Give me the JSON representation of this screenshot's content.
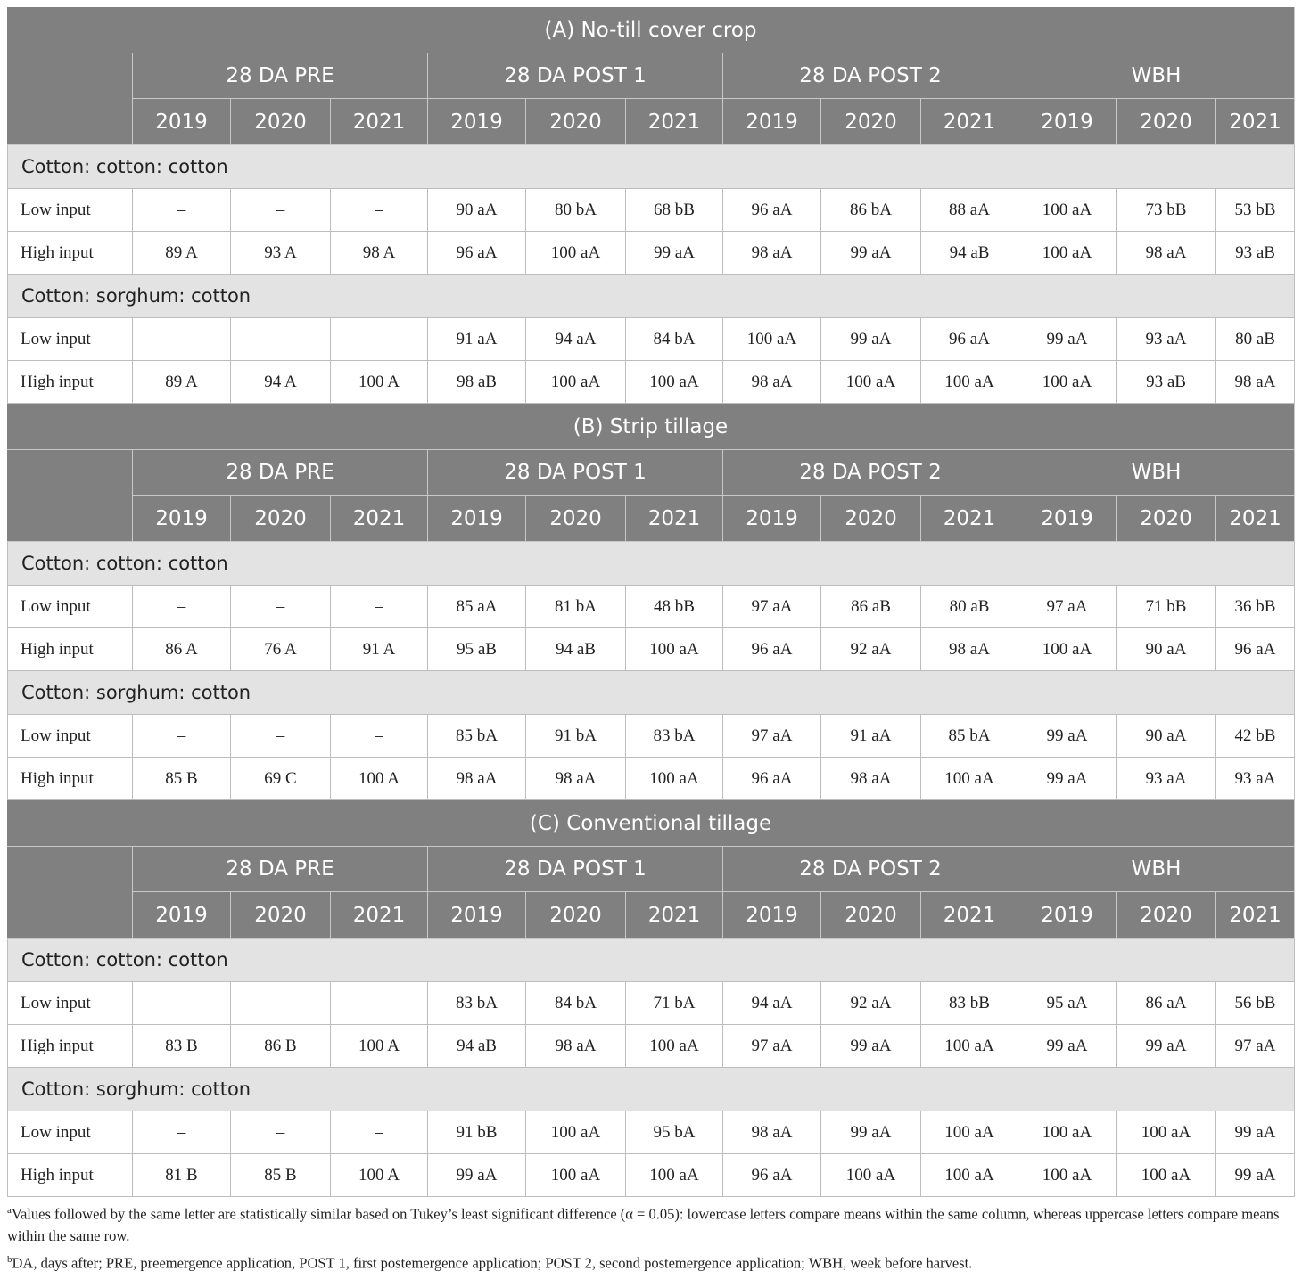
{
  "sections": [
    {
      "title": "(A) No-till cover crop",
      "column_groups": [
        "28 DA PRE",
        "28 DA POST 1",
        "28 DA POST 2",
        "WBH"
      ],
      "years": [
        "2019",
        "2020",
        "2021",
        "2019",
        "2020",
        "2021",
        "2019",
        "2020",
        "2021",
        "2019",
        "2020",
        "2021"
      ],
      "row_groups": [
        {
          "label": "Cotton: cotton: cotton",
          "rows": [
            {
              "label": "Low input",
              "cells": [
                "–",
                "–",
                "–",
                "90 aA",
                "80 bA",
                "68 bB",
                "96 aA",
                "86 bA",
                "88 aA",
                "100 aA",
                "73 bB",
                "53 bB"
              ]
            },
            {
              "label": "High input",
              "cells": [
                "89 A",
                "93 A",
                "98 A",
                "96 aA",
                "100 aA",
                "99 aA",
                "98 aA",
                "99 aA",
                "94 aB",
                "100 aA",
                "98 aA",
                "93 aB"
              ]
            }
          ]
        },
        {
          "label": "Cotton: sorghum: cotton",
          "rows": [
            {
              "label": "Low input",
              "cells": [
                "–",
                "–",
                "–",
                "91 aA",
                "94 aA",
                "84 bA",
                "100 aA",
                "99 aA",
                "96 aA",
                "99 aA",
                "93 aA",
                "80 aB"
              ]
            },
            {
              "label": "High input",
              "cells": [
                "89 A",
                "94 A",
                "100 A",
                "98 aB",
                "100 aA",
                "100 aA",
                "98 aA",
                "100 aA",
                "100 aA",
                "100 aA",
                "93 aB",
                "98 aA"
              ]
            }
          ]
        }
      ]
    },
    {
      "title": "(B) Strip tillage",
      "column_groups": [
        "28 DA PRE",
        "28 DA POST 1",
        "28 DA POST 2",
        "WBH"
      ],
      "years": [
        "2019",
        "2020",
        "2021",
        "2019",
        "2020",
        "2021",
        "2019",
        "2020",
        "2021",
        "2019",
        "2020",
        "2021"
      ],
      "row_groups": [
        {
          "label": "Cotton: cotton: cotton",
          "rows": [
            {
              "label": "Low input",
              "cells": [
                "–",
                "–",
                "–",
                "85 aA",
                "81 bA",
                "48 bB",
                "97 aA",
                "86 aB",
                "80 aB",
                "97 aA",
                "71 bB",
                "36 bB"
              ]
            },
            {
              "label": "High input",
              "cells": [
                "86 A",
                "76 A",
                "91 A",
                "95 aB",
                "94 aB",
                "100 aA",
                "96 aA",
                "92 aA",
                "98 aA",
                "100 aA",
                "90 aA",
                "96 aA"
              ]
            }
          ]
        },
        {
          "label": "Cotton: sorghum: cotton",
          "rows": [
            {
              "label": "Low input",
              "cells": [
                "–",
                "–",
                "–",
                "85 bA",
                "91 bA",
                "83 bA",
                "97 aA",
                "91 aA",
                "85 bA",
                "99 aA",
                "90 aA",
                "42 bB"
              ]
            },
            {
              "label": "High input",
              "cells": [
                "85 B",
                "69 C",
                "100 A",
                "98 aA",
                "98 aA",
                "100 aA",
                "96 aA",
                "98 aA",
                "100 aA",
                "99 aA",
                "93 aA",
                "93 aA"
              ]
            }
          ]
        }
      ]
    },
    {
      "title": "(C) Conventional tillage",
      "column_groups": [
        "28 DA PRE",
        "28 DA POST 1",
        "28 DA POST 2",
        "WBH"
      ],
      "years": [
        "2019",
        "2020",
        "2021",
        "2019",
        "2020",
        "2021",
        "2019",
        "2020",
        "2021",
        "2019",
        "2020",
        "2021"
      ],
      "row_groups": [
        {
          "label": "Cotton: cotton: cotton",
          "rows": [
            {
              "label": "Low input",
              "cells": [
                "–",
                "–",
                "–",
                "83 bA",
                "84 bA",
                "71 bA",
                "94 aA",
                "92 aA",
                "83 bB",
                "95 aA",
                "86 aA",
                "56 bB"
              ]
            },
            {
              "label": "High input",
              "cells": [
                "83 B",
                "86 B",
                "100 A",
                "94 aB",
                "98 aA",
                "100 aA",
                "97 aA",
                "99 aA",
                "100 aA",
                "99 aA",
                "99 aA",
                "97 aA"
              ]
            }
          ]
        },
        {
          "label": "Cotton: sorghum: cotton",
          "rows": [
            {
              "label": "Low input",
              "cells": [
                "–",
                "–",
                "–",
                "91 bB",
                "100 aA",
                "95 bA",
                "98 aA",
                "99 aA",
                "100 aA",
                "100 aA",
                "100 aA",
                "99 aA"
              ]
            },
            {
              "label": "High input",
              "cells": [
                "81 B",
                "85 B",
                "100 A",
                "99 aA",
                "100 aA",
                "100 aA",
                "96 aA",
                "100 aA",
                "100 aA",
                "100 aA",
                "100 aA",
                "99 aA"
              ]
            }
          ]
        }
      ]
    }
  ],
  "footnotes": [
    {
      "marker": "a",
      "text": "Values followed by the same letter are statistically similar based on Tukey’s least significant difference (α = 0.05): lowercase letters compare means within the same column, whereas uppercase letters compare means within the same row."
    },
    {
      "marker": "b",
      "text": "DA, days after; PRE, preemergence application, POST 1, first postemergence application; POST 2, second postemergence application; WBH, week before harvest."
    }
  ]
}
